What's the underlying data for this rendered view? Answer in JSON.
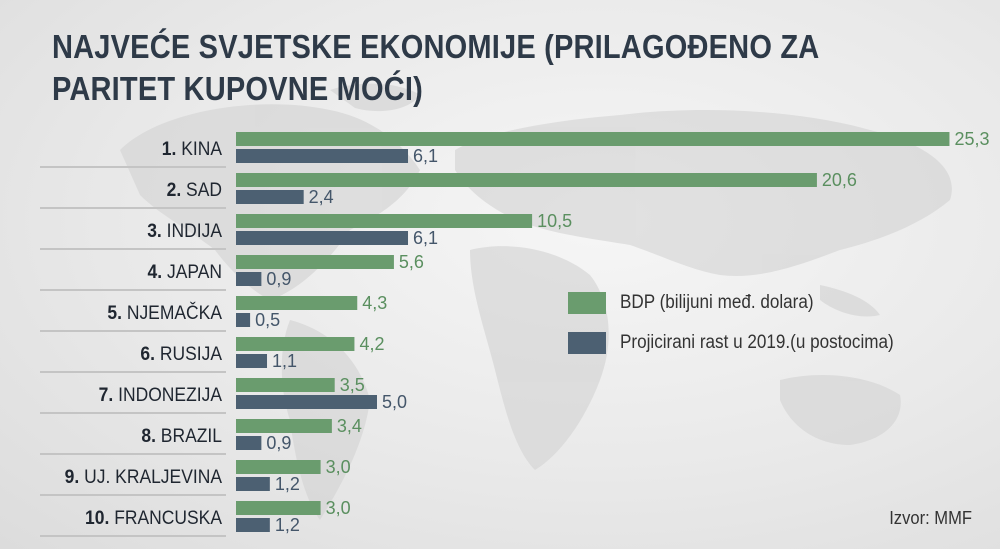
{
  "title": "NAJVEĆE SVJETSKE EKONOMIJE (PRILAGOĐENO ZA PARITET KUPOVNE MOĆI)",
  "source": "Izvor: MMF",
  "colors": {
    "gdp": "#6a9c6e",
    "growth": "#4c6072",
    "text": "#2e3a48"
  },
  "chart_data": {
    "type": "bar",
    "orientation": "horizontal",
    "categories": [
      "1. KINA",
      "2. SAD",
      "3. INDIJA",
      "4. JAPAN",
      "5. NJEMAČKA",
      "6. RUSIJA",
      "7. INDONEZIJA",
      "8. BRAZIL",
      "9. UJ. KRALJEVINA",
      "10. FRANCUSKA"
    ],
    "ranks": [
      "1.",
      "2.",
      "3.",
      "4.",
      "5.",
      "6.",
      "7.",
      "8.",
      "9.",
      "10."
    ],
    "names": [
      "KINA",
      "SAD",
      "INDIJA",
      "JAPAN",
      "NJEMAČKA",
      "RUSIJA",
      "INDONEZIJA",
      "BRAZIL",
      "UJ. KRALJEVINA",
      "FRANCUSKA"
    ],
    "series": [
      {
        "name": "BDP (bilijuni međ. dolara)",
        "values": [
          25.3,
          20.6,
          10.5,
          5.6,
          4.3,
          4.2,
          3.5,
          3.4,
          3.0,
          3.0
        ],
        "labels": [
          "25,3",
          "20,6",
          "10,5",
          "5,6",
          "4,3",
          "4,2",
          "3,5",
          "3,4",
          "3,0",
          "3,0"
        ]
      },
      {
        "name": "Projicirani rast u 2019.(u postocima)",
        "values": [
          6.1,
          2.4,
          6.1,
          0.9,
          0.5,
          1.1,
          5.0,
          0.9,
          1.2,
          1.2
        ],
        "labels": [
          "6,1",
          "2,4",
          "6,1",
          "0,9",
          "0,5",
          "1,1",
          "5,0",
          "0,9",
          "1,2",
          "1,2"
        ]
      }
    ],
    "legend_position": "right",
    "grid": false
  }
}
